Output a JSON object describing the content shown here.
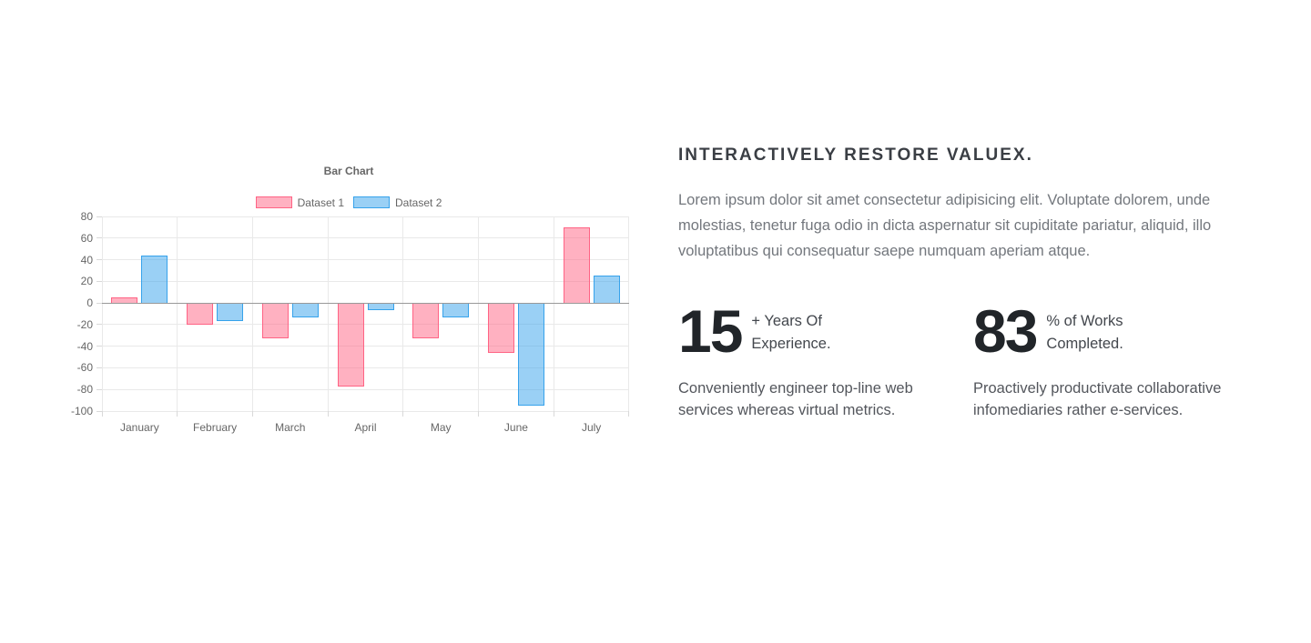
{
  "chart_data": {
    "type": "bar",
    "title": "Bar Chart",
    "categories": [
      "January",
      "February",
      "March",
      "April",
      "May",
      "June",
      "July"
    ],
    "series": [
      {
        "name": "Dataset 1",
        "values": [
          5,
          -20,
          -33,
          -77,
          -33,
          -46,
          70
        ],
        "fill": "rgba(255, 99, 132, 0.5)",
        "border": "#ff6384"
      },
      {
        "name": "Dataset 2",
        "values": [
          44,
          -17,
          -13,
          -7,
          -13,
          -95,
          25
        ],
        "fill": "rgba(54, 162, 235, 0.5)",
        "border": "#36a2eb"
      }
    ],
    "ylim": [
      -100,
      80
    ],
    "ytick_step": 20,
    "yticks": [
      80,
      60,
      40,
      20,
      0,
      -20,
      -40,
      -60,
      -80,
      -100
    ],
    "legend_position": "top",
    "grid": true
  },
  "content": {
    "heading": "INTERACTIVELY RESTORE VALUEX.",
    "paragraph": "Lorem ipsum dolor sit amet consectetur adipisicing elit. Voluptate dolorem, unde molestias, tenetur fuga odio in dicta aspernatur sit cupiditate pariatur, aliquid, illo voluptatibus qui consequatur saepe numquam aperiam atque.",
    "stats": [
      {
        "value": "15",
        "label_lines": [
          "+ Years Of",
          "Experience."
        ],
        "description": "Conveniently engineer top-line web services whereas virtual metrics."
      },
      {
        "value": "83",
        "label_lines": [
          "% of Works",
          "Completed."
        ],
        "description": "Proactively productivate collaborative infomediaries rather e-services."
      }
    ]
  }
}
